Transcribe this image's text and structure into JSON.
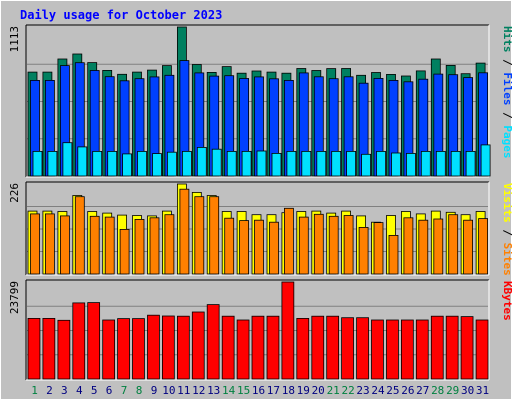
{
  "chart_data": {
    "type": "bar",
    "title": "Daily usage for October 2023",
    "categories": [
      "1",
      "2",
      "3",
      "4",
      "5",
      "6",
      "7",
      "8",
      "9",
      "10",
      "11",
      "12",
      "13",
      "14",
      "15",
      "16",
      "17",
      "18",
      "19",
      "20",
      "21",
      "22",
      "23",
      "24",
      "25",
      "26",
      "27",
      "28",
      "29",
      "30",
      "31"
    ],
    "weekend_days": [
      "1",
      "7",
      "8",
      "14",
      "15",
      "21",
      "22",
      "28",
      "29"
    ],
    "panels": [
      {
        "name": "pages-files-hits",
        "ymax_label": "1113",
        "ymax": 1113,
        "legend": [
          "Pages",
          "Files",
          "Hits"
        ],
        "legend_colors": [
          "#00e0ff",
          "#0040ff",
          "#008060"
        ],
        "series": [
          {
            "name": "Hits",
            "color": "#008060",
            "values": [
              776,
              776,
              874,
              911,
              847,
              789,
              760,
              776,
              791,
              825,
              1113,
              833,
              774,
              817,
              768,
              784,
              776,
              768,
              803,
              788,
              802,
              803,
              752,
              773,
              759,
              747,
              785,
              874,
              826,
              764,
              843
            ]
          },
          {
            "name": "Files",
            "color": "#0040ff",
            "values": [
              714,
              714,
              825,
              846,
              788,
              742,
              711,
              727,
              740,
              752,
              862,
              770,
              746,
              749,
              728,
              740,
              726,
              714,
              770,
              741,
              727,
              741,
              693,
              729,
              714,
              704,
              723,
              761,
              757,
              735,
              771
            ]
          },
          {
            "name": "Pages",
            "color": "#00e0ff",
            "values": [
              184,
              184,
              249,
              217,
              184,
              184,
              165,
              184,
              167,
              178,
              184,
              214,
              200,
              184,
              184,
              187,
              169,
              184,
              184,
              184,
              184,
              184,
              162,
              184,
              172,
              169,
              184,
              184,
              184,
              184,
              232
            ]
          }
        ]
      },
      {
        "name": "visits-sites",
        "ymax_label": "226",
        "ymax": 226,
        "legend": [
          "Sites",
          "Visits"
        ],
        "legend_colors": [
          "#ff8000",
          "#ffff00"
        ],
        "series": [
          {
            "name": "Visits",
            "color": "#ffff00",
            "values": [
              158,
              158,
              157,
              197,
              157,
              153,
              148,
              147,
              146,
              158,
              226,
              205,
              197,
              157,
              157,
              149,
              149,
              154,
              157,
              158,
              153,
              158,
              146,
              130,
              147,
              157,
              151,
              158,
              155,
              149,
              157
            ]
          },
          {
            "name": "Sites",
            "color": "#ff8000",
            "values": [
              151,
              151,
              146,
              194,
              145,
              143,
              112,
              137,
              141,
              149,
              213,
              194,
              194,
              140,
              134,
              135,
              130,
              165,
              143,
              150,
              145,
              147,
              117,
              129,
              97,
              141,
              135,
              138,
              149,
              135,
              139
            ]
          }
        ]
      },
      {
        "name": "kbytes",
        "ymax_label": "23799",
        "ymax": 23799,
        "legend": [
          "KBytes"
        ],
        "legend_colors": [
          "#ff0000"
        ],
        "series": [
          {
            "name": "KBytes",
            "color": "#ff0000",
            "values": [
              14880,
              14880,
              14400,
              18660,
              18750,
              14480,
              14820,
              14820,
              15660,
              15460,
              15420,
              16450,
              18260,
              15410,
              14480,
              15410,
              15420,
              23799,
              14860,
              15410,
              15410,
              15040,
              15040,
              14480,
              14480,
              14480,
              14480,
              15420,
              15420,
              15300,
              14480
            ]
          }
        ]
      }
    ]
  }
}
